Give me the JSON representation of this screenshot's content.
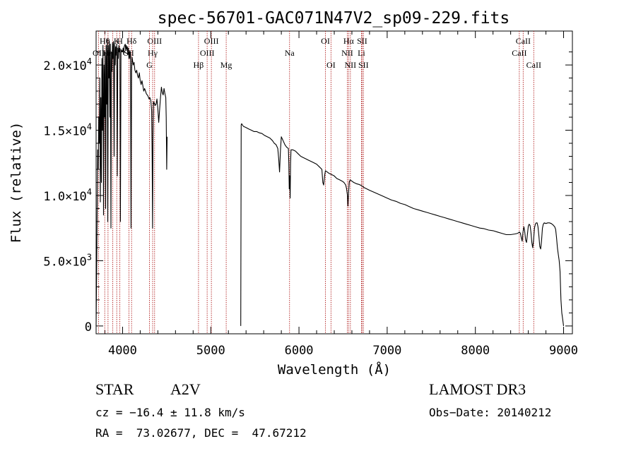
{
  "chart_data": {
    "type": "line",
    "title": "spec-56701-GAC071N47V2_sp09-229.fits",
    "xlabel": "Wavelength (Å)",
    "ylabel": "Flux (relative)",
    "xlim": [
      3700,
      9100
    ],
    "ylim": [
      -600,
      22600
    ],
    "x_ticks": [
      4000,
      5000,
      6000,
      7000,
      8000,
      9000
    ],
    "x_tick_labels": [
      "4000",
      "5000",
      "6000",
      "7000",
      "8000",
      "9000"
    ],
    "y_ticks": [
      0,
      5000,
      10000,
      15000,
      20000
    ],
    "y_tick_labels": [
      {
        "mantissa": "0",
        "exponent": ""
      },
      {
        "mantissa": "5.0×10",
        "exponent": "3"
      },
      {
        "mantissa": "1.0×10",
        "exponent": "4"
      },
      {
        "mantissa": "1.5×10",
        "exponent": "4"
      },
      {
        "mantissa": "2.0×10",
        "exponent": "4"
      }
    ],
    "grid": false,
    "series": [
      {
        "name": "spectrum",
        "segments": [
          {
            "x": [
              3700,
              3706,
              3712,
              3718,
              3724,
              3730,
              3736,
              3742,
              3748,
              3754,
              3760,
              3766,
              3772,
              3778,
              3784,
              3790,
              3796,
              3802,
              3808,
              3814,
              3820,
              3826,
              3832,
              3838,
              3844,
              3850,
              3856,
              3862,
              3868,
              3874,
              3880,
              3886,
              3892,
              3898,
              3904,
              3910,
              3916,
              3922,
              3928,
              3934,
              3940,
              3946,
              3952,
              3958,
              3964,
              3970,
              3976,
              3982,
              3988,
              3994,
              4000,
              4006,
              4012,
              4018,
              4024,
              4030,
              4036,
              4042,
              4048,
              4054,
              4060,
              4066,
              4072,
              4078,
              4084,
              4090,
              4096,
              4102,
              4108,
              4114,
              4120,
              4130,
              4140,
              4150,
              4160,
              4170,
              4180,
              4190,
              4200,
              4210,
              4220,
              4230,
              4240,
              4250,
              4260,
              4270,
              4280,
              4290,
              4300,
              4310,
              4320,
              4330,
              4335,
              4340,
              4345,
              4350,
              4355,
              4360,
              4370,
              4380,
              4390,
              4400,
              4410,
              4420,
              4430,
              4440,
              4450,
              4460,
              4470,
              4480,
              4490,
              4495,
              4500,
              4505
            ],
            "y": [
              0,
              4000,
              9000,
              13500,
              12000,
              16000,
              14000,
              19000,
              9500,
              17500,
              11000,
              20500,
              15000,
              21500,
              8500,
              20000,
              16000,
              21000,
              9000,
              21500,
              17000,
              22000,
              8000,
              21500,
              19000,
              21800,
              16000,
              21600,
              7500,
              21000,
              19500,
              21700,
              20500,
              21800,
              13000,
              21600,
              20000,
              21400,
              20800,
              21600,
              11500,
              21300,
              20500,
              21500,
              21000,
              21300,
              8000,
              21200,
              21000,
              21100,
              21000,
              21300,
              20800,
              21400,
              21500,
              21600,
              21100,
              21500,
              21200,
              21400,
              20800,
              21300,
              20500,
              21000,
              20500,
              21000,
              7500,
              19500,
              20600,
              20300,
              20000,
              20200,
              19600,
              19400,
              19600,
              19200,
              19000,
              19400,
              18800,
              18500,
              18800,
              18400,
              18000,
              18200,
              18000,
              17800,
              17700,
              17600,
              17400,
              17500,
              17300,
              16500,
              13000,
              7500,
              14500,
              17200,
              17000,
              17100,
              16900,
              17000,
              17400,
              16600,
              15600,
              16600,
              17500,
              18300,
              17900,
              17700,
              18200,
              17800,
              17500,
              16000,
              12000,
              14500
            ]
          },
          {
            "x": [
              5340,
              5345,
              5350,
              5370,
              5400,
              5430,
              5460,
              5490,
              5520,
              5550,
              5580,
              5610,
              5640,
              5670,
              5700,
              5720,
              5740,
              5760,
              5770,
              5780,
              5790,
              5800,
              5820,
              5840,
              5860,
              5880,
              5885,
              5890,
              5895,
              5900,
              5905,
              5910,
              5930,
              5960,
              5990,
              6020,
              6050,
              6080,
              6110,
              6140,
              6170,
              6200,
              6230,
              6260,
              6270,
              6280,
              6290,
              6300,
              6320,
              6340,
              6370,
              6400,
              6430,
              6460,
              6490,
              6510,
              6530,
              6540,
              6550,
              6555,
              6560,
              6565,
              6570,
              6580,
              6590,
              6600,
              6620,
              6650,
              6680,
              6710,
              6740,
              6770,
              6800,
              6850,
              6900,
              6950,
              7000,
              7050,
              7100,
              7150,
              7200,
              7250,
              7300,
              7350,
              7400,
              7450,
              7500,
              7550,
              7600,
              7650,
              7700,
              7750,
              7800,
              7850,
              7900,
              7950,
              8000,
              8050,
              8100,
              8150,
              8200,
              8250,
              8300,
              8350,
              8400,
              8450,
              8480,
              8500,
              8510,
              8520,
              8530,
              8540,
              8550,
              8560,
              8570,
              8580,
              8590,
              8600,
              8610,
              8620,
              8630,
              8640,
              8650,
              8660,
              8670,
              8680,
              8690,
              8700,
              8710,
              8720,
              8730,
              8740,
              8750,
              8760,
              8770,
              8780,
              8800,
              8820,
              8840,
              8860,
              8880,
              8900,
              8910,
              8920,
              8930,
              8940,
              8950,
              8960,
              8970,
              8980,
              8990,
              9000
            ],
            "y": [
              0,
              15400,
              15500,
              15300,
              15200,
              15100,
              15000,
              14900,
              14900,
              14800,
              14750,
              14600,
              14500,
              14400,
              14200,
              14000,
              13900,
              13600,
              12800,
              11800,
              13500,
              14500,
              14200,
              13900,
              13700,
              13600,
              12500,
              10500,
              11500,
              9800,
              12500,
              13500,
              13500,
              13400,
              13200,
              13000,
              12900,
              12800,
              12700,
              12600,
              12500,
              12400,
              12200,
              12000,
              11000,
              10800,
              11500,
              11900,
              11800,
              11700,
              11600,
              11500,
              11300,
              11200,
              11100,
              11000,
              10800,
              10500,
              10000,
              9200,
              10000,
              10500,
              11000,
              11200,
              11150,
              11100,
              11000,
              10900,
              10850,
              10750,
              10600,
              10500,
              10400,
              10250,
              10100,
              9950,
              9800,
              9650,
              9550,
              9400,
              9300,
              9150,
              9000,
              8900,
              8800,
              8700,
              8600,
              8500,
              8400,
              8300,
              8200,
              8100,
              8000,
              7900,
              7800,
              7700,
              7600,
              7500,
              7450,
              7350,
              7300,
              7200,
              7100,
              7000,
              7000,
              7050,
              7100,
              7200,
              7100,
              6800,
              6500,
              7200,
              7600,
              7200,
              6600,
              6400,
              7000,
              7650,
              7800,
              7700,
              7200,
              6400,
              6000,
              6600,
              7500,
              7800,
              7900,
              7900,
              7600,
              6900,
              6100,
              5900,
              6500,
              7500,
              7800,
              7900,
              7850,
              7900,
              7900,
              7850,
              7750,
              7600,
              7400,
              6800,
              6000,
              5500,
              5000,
              4200,
              2000,
              1000,
              500,
              0
            ]
          }
        ]
      }
    ],
    "lines": [
      {
        "label": "Hθ",
        "wl": 3798,
        "row": 1
      },
      {
        "label": "OII",
        "wl": 3727,
        "row": 2
      },
      {
        "label": "H",
        "wl": 3969,
        "row": 1
      },
      {
        "label": "K",
        "wl": 3934,
        "row": 1
      },
      {
        "label": "Hε",
        "wl": 3889,
        "row": 2
      },
      {
        "label": "Hη",
        "wl": 3835,
        "row": 2
      },
      {
        "label": "SII",
        "wl": 4072,
        "row": 2
      },
      {
        "label": "Hδ",
        "wl": 4102,
        "row": 1
      },
      {
        "label": "OIII",
        "wl": 4363,
        "row": 1
      },
      {
        "label": "Hγ",
        "wl": 4341,
        "row": 2
      },
      {
        "label": "G",
        "wl": 4305,
        "row": 3
      },
      {
        "label": "Hβ",
        "wl": 4861,
        "row": 3
      },
      {
        "label": "OIII",
        "wl": 5007,
        "row": 1
      },
      {
        "label": "OIII",
        "wl": 4959,
        "row": 2
      },
      {
        "label": "Mg",
        "wl": 5175,
        "row": 3
      },
      {
        "label": "Na",
        "wl": 5893,
        "row": 2
      },
      {
        "label": "OI",
        "wl": 6300,
        "row": 1
      },
      {
        "label": "OI",
        "wl": 6363,
        "row": 3
      },
      {
        "label": "Hα",
        "wl": 6563,
        "row": 1
      },
      {
        "label": "NII",
        "wl": 6548,
        "row": 2
      },
      {
        "label": "NII",
        "wl": 6583,
        "row": 3
      },
      {
        "label": "SII",
        "wl": 6716,
        "row": 1
      },
      {
        "label": "Li",
        "wl": 6708,
        "row": 2
      },
      {
        "label": "SII",
        "wl": 6731,
        "row": 3
      },
      {
        "label": "CaII",
        "wl": 8542,
        "row": 1
      },
      {
        "label": "CaII",
        "wl": 8498,
        "row": 2
      },
      {
        "label": "CaII",
        "wl": 8662,
        "row": 3
      }
    ],
    "annotations": {
      "ylabel_exponent_note": ""
    }
  },
  "info": {
    "class_label": "STAR",
    "subclass": "A2V",
    "survey": "LAMOST DR3",
    "cz": "cz = −16.4 ± 11.8 km/s",
    "obs_date": "Obs−Date: 20140212",
    "coords": "RA =  73.02677, DEC =  47.67212"
  },
  "colors": {
    "axis": "#000000",
    "spectrum": "#000000",
    "line_marker": "#b22222"
  }
}
